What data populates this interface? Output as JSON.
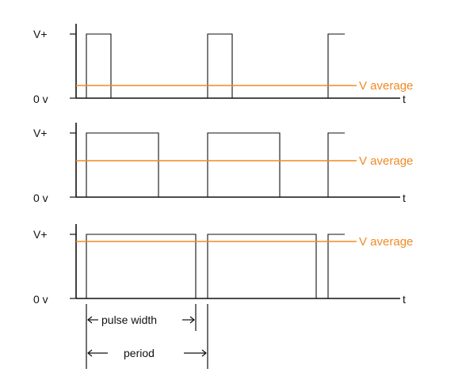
{
  "labels": {
    "v_plus": "V+",
    "zero": "0 v",
    "time": "t",
    "v_average": "V average",
    "pulse_width": "pulse width",
    "period": "period"
  },
  "colors": {
    "average_line": "#f08a24",
    "signal": "#111111"
  },
  "panels": [
    {
      "duty_cycle": 0.2
    },
    {
      "duty_cycle": 0.6
    },
    {
      "duty_cycle": 0.9
    }
  ]
}
